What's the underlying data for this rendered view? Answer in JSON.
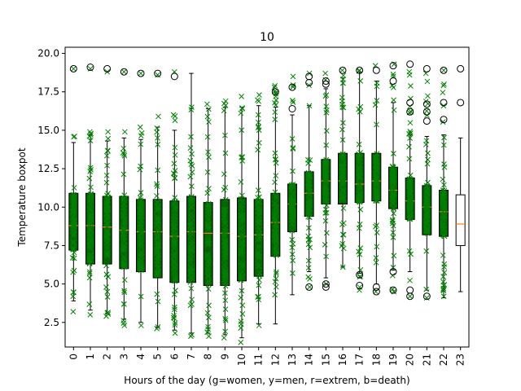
{
  "chart_data": {
    "type": "boxplot",
    "title": "10",
    "xlabel": "Hours of the day (g=women, y=men, r=extrem, b=death)",
    "ylabel": "Temperature boxpot",
    "categories": [
      "0",
      "1",
      "2",
      "3",
      "4",
      "5",
      "6",
      "7",
      "8",
      "9",
      "10",
      "11",
      "12",
      "13",
      "14",
      "15",
      "16",
      "17",
      "18",
      "19",
      "20",
      "21",
      "22",
      "23"
    ],
    "yticks": [
      "2.5",
      "5.0",
      "7.5",
      "10.0",
      "12.5",
      "15.0",
      "17.5",
      "20.0"
    ],
    "ylim": [
      0.9,
      20.4
    ],
    "grid": false,
    "colors": {
      "box_fill": "#006400",
      "last_box_fill": "#ffffff",
      "median": "#ff7f0e",
      "points": "#008000",
      "outlier": "#000000"
    },
    "series": [
      {
        "q1": 7.2,
        "median": 8.8,
        "q3": 10.9,
        "whisker_low": 3.9,
        "whisker_high": 14.2,
        "fliers": [
          19.0
        ],
        "points_min": 3.2,
        "points_max": 14.6,
        "extra_points": [
          19.0
        ]
      },
      {
        "q1": 6.3,
        "median": 8.8,
        "q3": 10.9,
        "whisker_low": 3.3,
        "whisker_high": 14.7,
        "fliers": [
          19.1
        ],
        "points_min": 3.0,
        "points_max": 14.9,
        "extra_points": [
          19.0
        ]
      },
      {
        "q1": 6.3,
        "median": 8.7,
        "q3": 10.7,
        "whisker_low": 3.1,
        "whisker_high": 14.3,
        "fliers": [
          19.0
        ],
        "points_min": 2.9,
        "points_max": 14.9,
        "extra_points": [
          18.8
        ]
      },
      {
        "q1": 6.0,
        "median": 8.5,
        "q3": 10.7,
        "whisker_low": 2.7,
        "whisker_high": 14.5,
        "fliers": [
          18.8
        ],
        "points_min": 2.3,
        "points_max": 14.9,
        "extra_points": [
          18.8
        ]
      },
      {
        "q1": 5.8,
        "median": 8.4,
        "q3": 10.5,
        "whisker_low": 2.5,
        "whisker_high": 14.4,
        "fliers": [
          18.7
        ],
        "points_min": 2.3,
        "points_max": 15.2,
        "extra_points": [
          18.7
        ]
      },
      {
        "q1": 5.4,
        "median": 8.4,
        "q3": 10.5,
        "whisker_low": 2.2,
        "whisker_high": 15.2,
        "fliers": [
          18.7
        ],
        "points_min": 2.1,
        "points_max": 15.9,
        "extra_points": [
          18.6
        ]
      },
      {
        "q1": 5.1,
        "median": 8.1,
        "q3": 10.4,
        "whisker_low": 2.0,
        "whisker_high": 15.0,
        "fliers": [
          18.5
        ],
        "points_min": 1.8,
        "points_max": 16.0,
        "extra_points": [
          18.8
        ]
      },
      {
        "q1": 5.1,
        "median": 8.4,
        "q3": 10.7,
        "whisker_low": 1.8,
        "whisker_high": 18.7,
        "fliers": [],
        "points_min": 1.6,
        "points_max": 16.5,
        "extra_points": []
      },
      {
        "q1": 4.9,
        "median": 8.3,
        "q3": 10.3,
        "whisker_low": 1.8,
        "whisker_high": 16.4,
        "fliers": [],
        "points_min": 1.6,
        "points_max": 16.7,
        "extra_points": []
      },
      {
        "q1": 4.9,
        "median": 8.3,
        "q3": 10.5,
        "whisker_low": 1.7,
        "whisker_high": 16.5,
        "fliers": [],
        "points_min": 1.5,
        "points_max": 16.9,
        "extra_points": []
      },
      {
        "q1": 5.2,
        "median": 8.1,
        "q3": 10.6,
        "whisker_low": 1.5,
        "whisker_high": 16.5,
        "fliers": [],
        "points_min": 1.2,
        "points_max": 17.2,
        "extra_points": []
      },
      {
        "q1": 5.5,
        "median": 8.2,
        "q3": 10.5,
        "whisker_low": 2.4,
        "whisker_high": 16.6,
        "fliers": [],
        "points_min": 2.3,
        "points_max": 17.3,
        "extra_points": []
      },
      {
        "q1": 6.8,
        "median": 9.0,
        "q3": 10.9,
        "whisker_low": 2.4,
        "whisker_high": 16.5,
        "fliers": [
          17.5
        ],
        "points_min": 4.3,
        "points_max": 17.9,
        "extra_points": []
      },
      {
        "q1": 8.4,
        "median": 10.2,
        "q3": 11.5,
        "whisker_low": 4.3,
        "whisker_high": 16.0,
        "fliers": [
          16.4,
          17.8
        ],
        "points_min": 5.7,
        "points_max": 18.5,
        "extra_points": []
      },
      {
        "q1": 9.4,
        "median": 10.9,
        "q3": 12.3,
        "whisker_low": 5.8,
        "whisker_high": 16.6,
        "fliers": [
          4.8,
          18.1,
          18.5
        ],
        "points_min": 4.8,
        "points_max": 18.7,
        "extra_points": []
      },
      {
        "q1": 10.2,
        "median": 11.7,
        "q3": 13.1,
        "whisker_low": 5.4,
        "whisker_high": 17.7,
        "fliers": [
          4.8,
          5.0,
          18.0,
          18.2
        ],
        "points_min": 5.0,
        "points_max": 18.7,
        "extra_points": []
      },
      {
        "q1": 10.2,
        "median": 11.7,
        "q3": 13.5,
        "whisker_low": 6.1,
        "whisker_high": 18.4,
        "fliers": [
          18.9
        ],
        "points_min": 6.1,
        "points_max": 18.9,
        "extra_points": []
      },
      {
        "q1": 10.3,
        "median": 11.5,
        "q3": 13.5,
        "whisker_low": 5.7,
        "whisker_high": 18.8,
        "fliers": [
          4.9,
          5.6,
          18.9
        ],
        "points_min": 4.6,
        "points_max": 18.9,
        "extra_points": []
      },
      {
        "q1": 10.4,
        "median": 11.7,
        "q3": 13.5,
        "whisker_low": 5.0,
        "whisker_high": 18.2,
        "fliers": [
          4.5,
          4.8,
          18.9
        ],
        "points_min": 4.5,
        "points_max": 19.2,
        "extra_points": []
      },
      {
        "q1": 9.9,
        "median": 11.1,
        "q3": 12.6,
        "whisker_low": 5.9,
        "whisker_high": 16.8,
        "fliers": [
          4.6,
          5.8,
          18.2,
          19.2
        ],
        "points_min": 4.5,
        "points_max": 19.3,
        "extra_points": []
      },
      {
        "q1": 9.2,
        "median": 10.4,
        "q3": 11.9,
        "whisker_low": 5.8,
        "whisker_high": 14.7,
        "fliers": [
          4.2,
          4.6,
          16.2,
          16.8,
          19.3
        ],
        "points_min": 4.2,
        "points_max": 18.8,
        "extra_points": []
      },
      {
        "q1": 8.2,
        "median": 10.0,
        "q3": 11.4,
        "whisker_low": 4.6,
        "whisker_high": 14.6,
        "fliers": [
          4.2,
          15.6,
          16.2,
          16.7,
          19.0
        ],
        "points_min": 4.1,
        "points_max": 18.7,
        "extra_points": []
      },
      {
        "q1": 8.1,
        "median": 9.7,
        "q3": 11.1,
        "whisker_low": 4.1,
        "whisker_high": 14.7,
        "fliers": [
          15.7,
          16.8,
          18.9
        ],
        "points_min": 4.2,
        "points_max": 18.9,
        "extra_points": []
      },
      {
        "q1": 7.5,
        "median": 8.9,
        "q3": 10.8,
        "whisker_low": 4.5,
        "whisker_high": 14.5,
        "fliers": [
          16.8,
          19.0
        ],
        "points_min": null,
        "points_max": null,
        "extra_points": []
      }
    ]
  }
}
